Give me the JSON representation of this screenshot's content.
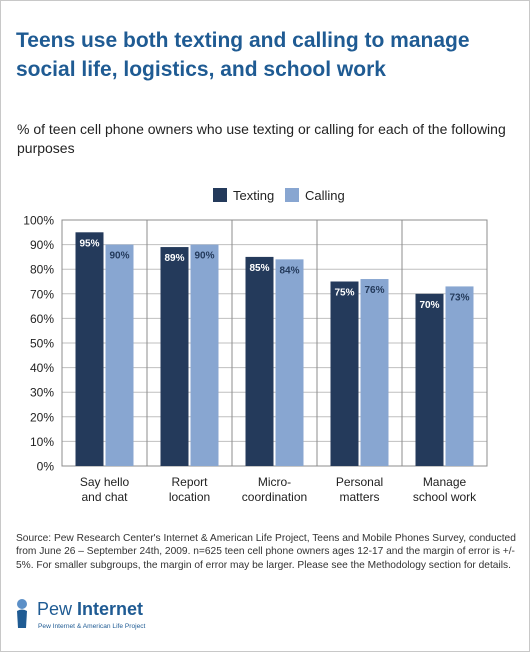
{
  "title": "Teens use both texting and calling to manage social life, logistics, and school work",
  "subtitle": "% of teen cell phone owners who use texting or calling for each of the following purposes",
  "source": "Source: Pew Research Center's Internet & American Life Project, Teens and Mobile Phones Survey, conducted from June 26 – September 24th, 2009. n=625 teen cell phone owners ages 12-17 and the margin of error is +/- 5%. For smaller subgroups, the margin of error may be larger. Please see the Methodology section for details.",
  "logo": {
    "name_light": "Pew",
    "name_bold": "Internet",
    "tagline": "Pew Internet & American Life Project"
  },
  "colors": {
    "title": "#1f5b93",
    "texting": "#243a5b",
    "calling": "#88a6d1",
    "gridline": "#bfbfbf"
  },
  "chart_data": {
    "type": "bar",
    "categories": [
      [
        "Say hello",
        "and chat"
      ],
      [
        "Report",
        "location"
      ],
      [
        "Micro-",
        "coordination"
      ],
      [
        "Personal",
        "matters"
      ],
      [
        "Manage",
        "school work"
      ]
    ],
    "series": [
      {
        "name": "Texting",
        "values": [
          95,
          89,
          85,
          75,
          70
        ]
      },
      {
        "name": "Calling",
        "values": [
          90,
          90,
          84,
          76,
          73
        ]
      }
    ],
    "data_labels": [
      [
        "95%",
        "89%",
        "85%",
        "75%",
        "70%"
      ],
      [
        "90%",
        "90%",
        "84%",
        "76%",
        "73%"
      ]
    ],
    "yticks": [
      "0%",
      "10%",
      "20%",
      "30%",
      "40%",
      "50%",
      "60%",
      "70%",
      "80%",
      "90%",
      "100%"
    ],
    "ylim": [
      0,
      100
    ],
    "grid": true,
    "legend_position": "top-center"
  }
}
